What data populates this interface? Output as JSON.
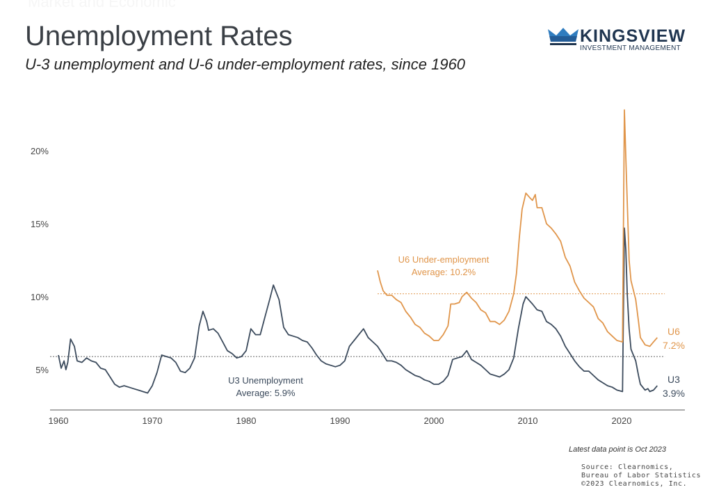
{
  "header": {
    "faded_label": "Market and Economic",
    "title": "Unemployment Rates",
    "subtitle": "U-3 unemployment and U-6 under-employment rates, since 1960"
  },
  "logo": {
    "name": "KINGSVIEW",
    "tagline": "INVESTMENT MANAGEMENT"
  },
  "footer": {
    "latest": "Latest data point is Oct 2023",
    "source_lines": [
      "Source: Clearnomics,",
      "Bureau of Labor Statistics",
      "©2023 Clearnomics, Inc."
    ]
  },
  "chart_data": {
    "type": "line",
    "title": "",
    "xlabel": "",
    "ylabel": "",
    "xlim": [
      1959.1,
      2026.5
    ],
    "ylim": [
      2.2,
      23
    ],
    "grid": false,
    "x_ticks": [
      1960,
      1970,
      1980,
      1990,
      2000,
      2010,
      2020
    ],
    "y_ticks": [
      {
        "value": 5,
        "label": "5%"
      },
      {
        "value": 10,
        "label": "10%"
      },
      {
        "value": 15,
        "label": "15%"
      },
      {
        "value": 20,
        "label": "20%"
      }
    ],
    "series": [
      {
        "name": "U3",
        "end_label": "3.9%",
        "color": "#3b4a5c",
        "average": 5.9,
        "average_label": [
          "U3 Unemployment",
          "Average: 5.9%"
        ],
        "points": [
          [
            1960.0,
            6.0
          ],
          [
            1960.3,
            5.1
          ],
          [
            1960.6,
            5.6
          ],
          [
            1960.8,
            5.0
          ],
          [
            1961.0,
            5.5
          ],
          [
            1961.3,
            7.1
          ],
          [
            1961.7,
            6.6
          ],
          [
            1962.0,
            5.6
          ],
          [
            1962.5,
            5.5
          ],
          [
            1963.0,
            5.8
          ],
          [
            1963.5,
            5.6
          ],
          [
            1964.0,
            5.5
          ],
          [
            1964.5,
            5.1
          ],
          [
            1965.0,
            5.0
          ],
          [
            1965.5,
            4.5
          ],
          [
            1966.0,
            4.0
          ],
          [
            1966.5,
            3.8
          ],
          [
            1967.0,
            3.9
          ],
          [
            1967.5,
            3.8
          ],
          [
            1968.0,
            3.7
          ],
          [
            1968.5,
            3.6
          ],
          [
            1969.0,
            3.5
          ],
          [
            1969.5,
            3.4
          ],
          [
            1970.0,
            3.9
          ],
          [
            1970.5,
            4.8
          ],
          [
            1971.0,
            6.0
          ],
          [
            1971.5,
            5.9
          ],
          [
            1972.0,
            5.8
          ],
          [
            1972.5,
            5.5
          ],
          [
            1973.0,
            4.9
          ],
          [
            1973.5,
            4.8
          ],
          [
            1974.0,
            5.1
          ],
          [
            1974.5,
            5.8
          ],
          [
            1975.0,
            8.0
          ],
          [
            1975.4,
            9.0
          ],
          [
            1975.8,
            8.3
          ],
          [
            1976.0,
            7.7
          ],
          [
            1976.5,
            7.8
          ],
          [
            1977.0,
            7.5
          ],
          [
            1977.5,
            6.9
          ],
          [
            1978.0,
            6.3
          ],
          [
            1978.5,
            6.1
          ],
          [
            1979.0,
            5.8
          ],
          [
            1979.5,
            5.9
          ],
          [
            1980.0,
            6.3
          ],
          [
            1980.5,
            7.8
          ],
          [
            1981.0,
            7.4
          ],
          [
            1981.5,
            7.4
          ],
          [
            1982.0,
            8.6
          ],
          [
            1982.5,
            9.8
          ],
          [
            1982.9,
            10.8
          ],
          [
            1983.5,
            9.8
          ],
          [
            1984.0,
            7.9
          ],
          [
            1984.5,
            7.4
          ],
          [
            1985.0,
            7.3
          ],
          [
            1985.5,
            7.2
          ],
          [
            1986.0,
            7.0
          ],
          [
            1986.5,
            6.9
          ],
          [
            1987.0,
            6.5
          ],
          [
            1987.5,
            6.0
          ],
          [
            1988.0,
            5.6
          ],
          [
            1988.5,
            5.4
          ],
          [
            1989.0,
            5.3
          ],
          [
            1989.5,
            5.2
          ],
          [
            1990.0,
            5.3
          ],
          [
            1990.5,
            5.6
          ],
          [
            1991.0,
            6.6
          ],
          [
            1991.5,
            7.0
          ],
          [
            1992.0,
            7.4
          ],
          [
            1992.5,
            7.8
          ],
          [
            1993.0,
            7.2
          ],
          [
            1993.5,
            6.9
          ],
          [
            1994.0,
            6.6
          ],
          [
            1994.5,
            6.1
          ],
          [
            1995.0,
            5.6
          ],
          [
            1995.5,
            5.6
          ],
          [
            1996.0,
            5.5
          ],
          [
            1996.5,
            5.3
          ],
          [
            1997.0,
            5.0
          ],
          [
            1997.5,
            4.8
          ],
          [
            1998.0,
            4.6
          ],
          [
            1998.5,
            4.5
          ],
          [
            1999.0,
            4.3
          ],
          [
            1999.5,
            4.2
          ],
          [
            2000.0,
            4.0
          ],
          [
            2000.5,
            4.0
          ],
          [
            2001.0,
            4.2
          ],
          [
            2001.5,
            4.6
          ],
          [
            2002.0,
            5.7
          ],
          [
            2002.5,
            5.8
          ],
          [
            2003.0,
            5.9
          ],
          [
            2003.5,
            6.3
          ],
          [
            2004.0,
            5.7
          ],
          [
            2004.5,
            5.5
          ],
          [
            2005.0,
            5.3
          ],
          [
            2005.5,
            5.0
          ],
          [
            2006.0,
            4.7
          ],
          [
            2006.5,
            4.6
          ],
          [
            2007.0,
            4.5
          ],
          [
            2007.5,
            4.7
          ],
          [
            2008.0,
            5.0
          ],
          [
            2008.5,
            5.8
          ],
          [
            2009.0,
            7.8
          ],
          [
            2009.5,
            9.5
          ],
          [
            2009.8,
            10.0
          ],
          [
            2010.5,
            9.5
          ],
          [
            2011.0,
            9.1
          ],
          [
            2011.5,
            9.0
          ],
          [
            2012.0,
            8.3
          ],
          [
            2012.5,
            8.1
          ],
          [
            2013.0,
            7.8
          ],
          [
            2013.5,
            7.3
          ],
          [
            2014.0,
            6.6
          ],
          [
            2014.5,
            6.1
          ],
          [
            2015.0,
            5.6
          ],
          [
            2015.5,
            5.2
          ],
          [
            2016.0,
            4.9
          ],
          [
            2016.5,
            4.9
          ],
          [
            2017.0,
            4.6
          ],
          [
            2017.5,
            4.3
          ],
          [
            2018.0,
            4.1
          ],
          [
            2018.5,
            3.9
          ],
          [
            2019.0,
            3.8
          ],
          [
            2019.5,
            3.6
          ],
          [
            2020.1,
            3.5
          ],
          [
            2020.3,
            14.7
          ],
          [
            2020.45,
            13.2
          ],
          [
            2020.6,
            10.2
          ],
          [
            2020.8,
            7.8
          ],
          [
            2021.0,
            6.4
          ],
          [
            2021.5,
            5.6
          ],
          [
            2021.8,
            4.6
          ],
          [
            2022.0,
            4.0
          ],
          [
            2022.5,
            3.6
          ],
          [
            2022.8,
            3.7
          ],
          [
            2023.0,
            3.5
          ],
          [
            2023.4,
            3.6
          ],
          [
            2023.8,
            3.9
          ]
        ]
      },
      {
        "name": "U6",
        "end_label": "7.2%",
        "color": "#e0954a",
        "average": 10.2,
        "average_label": [
          "U6 Under-employment",
          "Average: 10.2%"
        ],
        "points": [
          [
            1994.0,
            11.8
          ],
          [
            1994.3,
            11.0
          ],
          [
            1994.6,
            10.4
          ],
          [
            1995.0,
            10.1
          ],
          [
            1995.5,
            10.1
          ],
          [
            1996.0,
            9.8
          ],
          [
            1996.5,
            9.6
          ],
          [
            1997.0,
            9.0
          ],
          [
            1997.5,
            8.6
          ],
          [
            1998.0,
            8.1
          ],
          [
            1998.5,
            7.9
          ],
          [
            1999.0,
            7.5
          ],
          [
            1999.5,
            7.3
          ],
          [
            2000.0,
            7.0
          ],
          [
            2000.5,
            7.0
          ],
          [
            2001.0,
            7.4
          ],
          [
            2001.5,
            8.0
          ],
          [
            2001.8,
            9.5
          ],
          [
            2002.2,
            9.5
          ],
          [
            2002.7,
            9.6
          ],
          [
            2003.0,
            10.0
          ],
          [
            2003.5,
            10.3
          ],
          [
            2004.0,
            9.9
          ],
          [
            2004.5,
            9.6
          ],
          [
            2005.0,
            9.1
          ],
          [
            2005.5,
            8.9
          ],
          [
            2006.0,
            8.3
          ],
          [
            2006.5,
            8.3
          ],
          [
            2007.0,
            8.1
          ],
          [
            2007.5,
            8.4
          ],
          [
            2008.0,
            9.0
          ],
          [
            2008.5,
            10.2
          ],
          [
            2008.8,
            11.6
          ],
          [
            2009.1,
            14.0
          ],
          [
            2009.4,
            16.0
          ],
          [
            2009.8,
            17.1
          ],
          [
            2010.2,
            16.8
          ],
          [
            2010.5,
            16.6
          ],
          [
            2010.8,
            17.0
          ],
          [
            2011.0,
            16.1
          ],
          [
            2011.5,
            16.1
          ],
          [
            2012.0,
            15.0
          ],
          [
            2012.5,
            14.7
          ],
          [
            2013.0,
            14.3
          ],
          [
            2013.5,
            13.8
          ],
          [
            2014.0,
            12.7
          ],
          [
            2014.5,
            12.1
          ],
          [
            2015.0,
            11.0
          ],
          [
            2015.5,
            10.4
          ],
          [
            2016.0,
            9.9
          ],
          [
            2016.5,
            9.6
          ],
          [
            2017.0,
            9.3
          ],
          [
            2017.5,
            8.5
          ],
          [
            2018.0,
            8.2
          ],
          [
            2018.5,
            7.6
          ],
          [
            2019.0,
            7.3
          ],
          [
            2019.5,
            7.0
          ],
          [
            2020.1,
            6.9
          ],
          [
            2020.3,
            22.8
          ],
          [
            2020.45,
            19.5
          ],
          [
            2020.6,
            16.5
          ],
          [
            2020.8,
            12.5
          ],
          [
            2021.0,
            11.1
          ],
          [
            2021.5,
            9.8
          ],
          [
            2021.8,
            8.3
          ],
          [
            2022.0,
            7.2
          ],
          [
            2022.5,
            6.7
          ],
          [
            2023.0,
            6.6
          ],
          [
            2023.4,
            6.9
          ],
          [
            2023.8,
            7.2
          ]
        ]
      }
    ]
  }
}
